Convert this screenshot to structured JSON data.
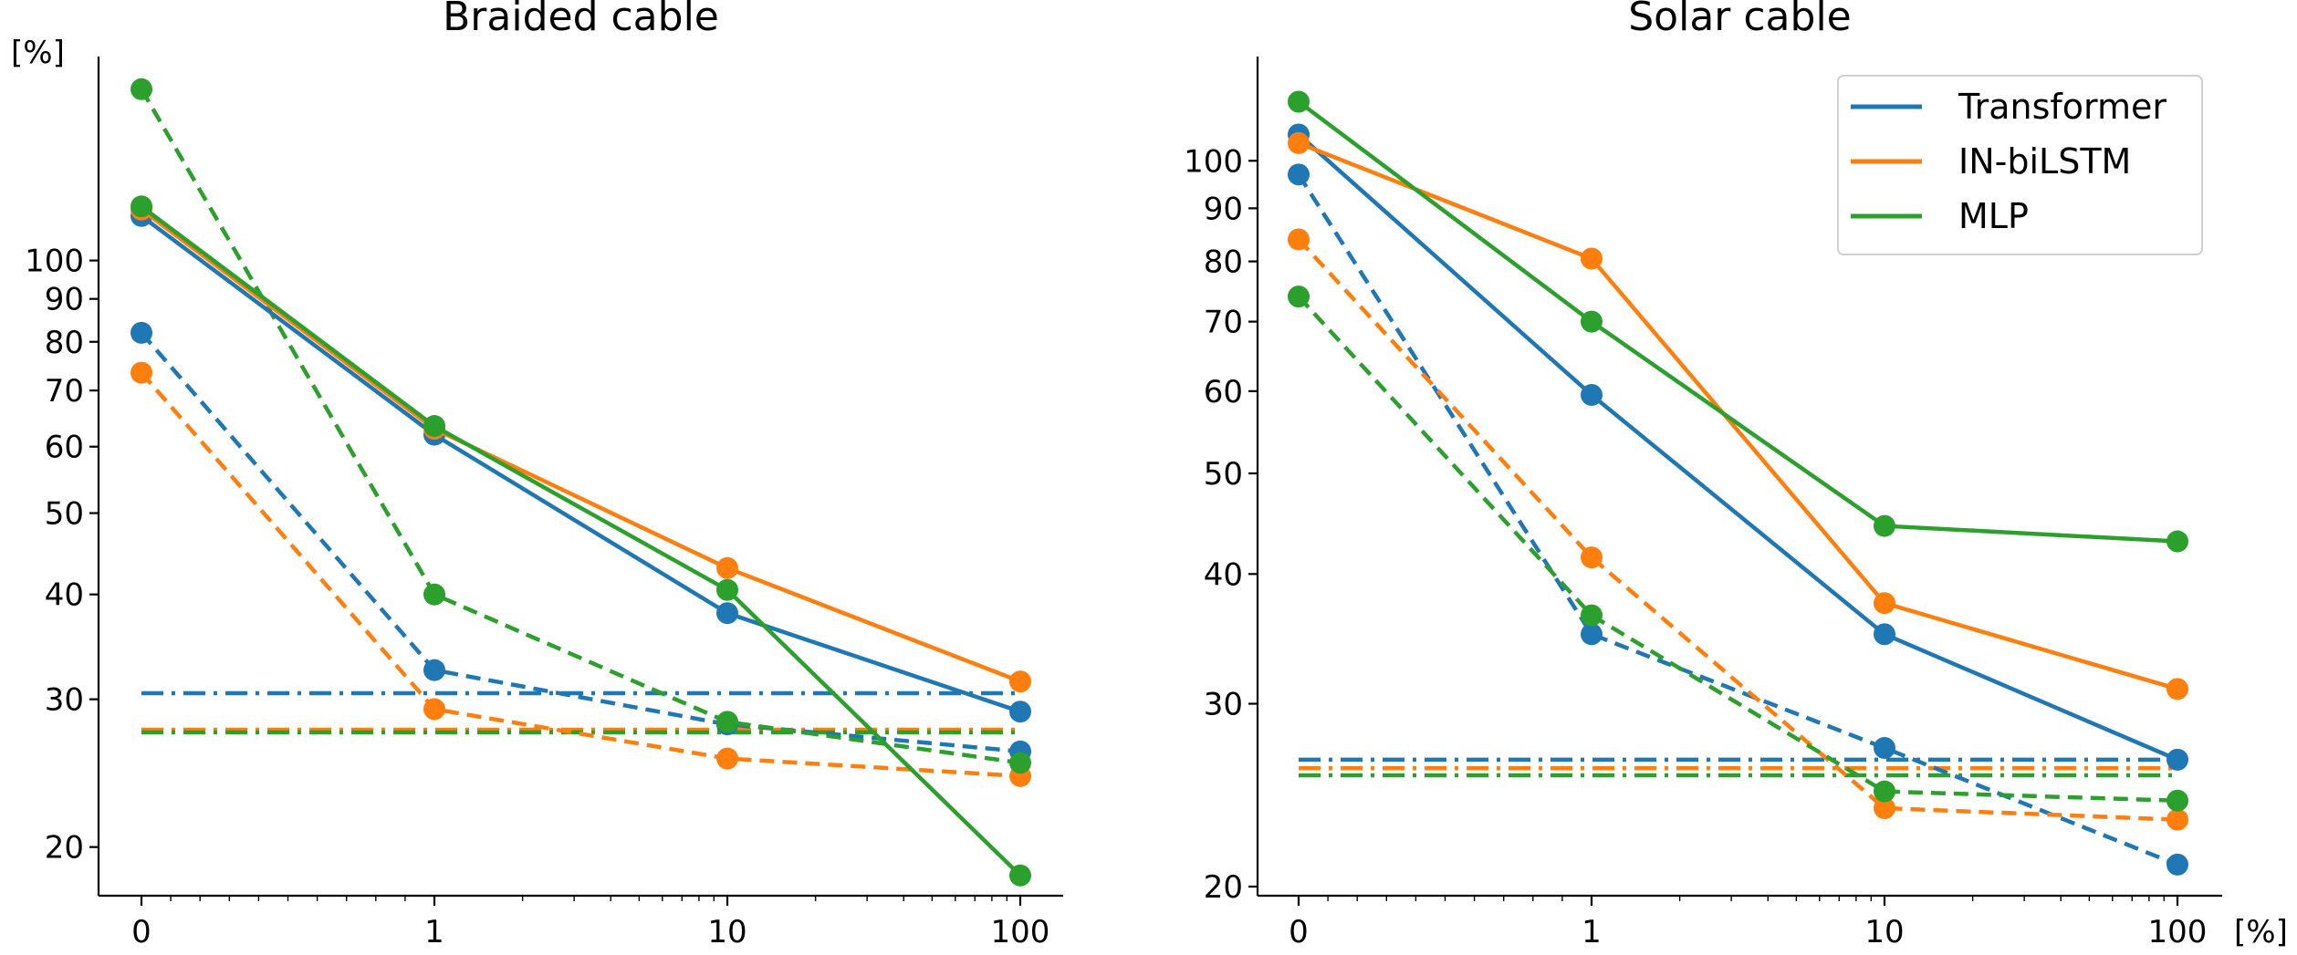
{
  "colors": {
    "Transformer": "#1f77b4",
    "IN-biLSTM": "#ff7f0e",
    "MLP": "#2ca02c"
  },
  "legend": [
    "Transformer",
    "IN-biLSTM",
    "MLP"
  ],
  "chart_data": [
    {
      "type": "line",
      "title": "Braided cable",
      "xscale": "symlog",
      "yscale": "log",
      "x": [
        0,
        1,
        10,
        100
      ],
      "xticks": [
        "0",
        "1",
        "10",
        "100"
      ],
      "xlabel": "",
      "ylabel": "[%]",
      "yticks": [
        20,
        30,
        40,
        50,
        60,
        70,
        80,
        90,
        100
      ],
      "ylim": [
        17.5,
        175
      ],
      "grid": false,
      "series": [
        {
          "name": "Transformer",
          "style": "solid",
          "values": [
            113,
            62,
            38,
            29
          ]
        },
        {
          "name": "IN-biLSTM",
          "style": "solid",
          "values": [
            115,
            63,
            43,
            31.5
          ]
        },
        {
          "name": "MLP",
          "style": "solid",
          "values": [
            116,
            63.5,
            40.5,
            18.5
          ]
        },
        {
          "name": "Transformer",
          "style": "dashed",
          "values": [
            82,
            32.5,
            28,
            26
          ]
        },
        {
          "name": "IN-biLSTM",
          "style": "dashed",
          "values": [
            73.5,
            29.2,
            25.5,
            24.3
          ]
        },
        {
          "name": "MLP",
          "style": "dashed",
          "values": [
            160,
            40,
            28.2,
            25.2
          ]
        },
        {
          "name": "Transformer",
          "style": "dashdot",
          "values": [
            30.5,
            30.5,
            30.5,
            30.5
          ]
        },
        {
          "name": "IN-biLSTM",
          "style": "dashdot",
          "values": [
            27.6,
            27.6,
            27.6,
            27.6
          ]
        },
        {
          "name": "MLP",
          "style": "dashdot",
          "values": [
            27.4,
            27.4,
            27.4,
            27.4
          ]
        }
      ]
    },
    {
      "type": "line",
      "title": "Solar cable",
      "xscale": "symlog",
      "yscale": "log",
      "x": [
        0,
        1,
        10,
        100
      ],
      "xticks": [
        "0",
        "1",
        "10",
        "100"
      ],
      "xlabel": "[%]",
      "ylabel": "",
      "yticks": [
        20,
        30,
        40,
        50,
        60,
        70,
        80,
        90,
        100
      ],
      "ylim": [
        19.6,
        126
      ],
      "grid": false,
      "legend_position": "top-right",
      "series": [
        {
          "name": "Transformer",
          "style": "solid",
          "values": [
            106,
            59.5,
            35,
            26.5
          ]
        },
        {
          "name": "IN-biLSTM",
          "style": "solid",
          "values": [
            104,
            80.5,
            37.5,
            31
          ]
        },
        {
          "name": "MLP",
          "style": "solid",
          "values": [
            114,
            70,
            44.5,
            43
          ]
        },
        {
          "name": "Transformer",
          "style": "dashed",
          "values": [
            97,
            35,
            27.2,
            21
          ]
        },
        {
          "name": "IN-biLSTM",
          "style": "dashed",
          "values": [
            84,
            41.5,
            23.8,
            23.2
          ]
        },
        {
          "name": "MLP",
          "style": "dashed",
          "values": [
            74,
            36.5,
            24.7,
            24.2
          ]
        },
        {
          "name": "Transformer",
          "style": "dashdot",
          "values": [
            26.5,
            26.5,
            26.5,
            26.5
          ]
        },
        {
          "name": "IN-biLSTM",
          "style": "dashdot",
          "values": [
            26,
            26,
            26,
            26
          ]
        },
        {
          "name": "MLP",
          "style": "dashdot",
          "values": [
            25.6,
            25.6,
            25.6,
            25.6
          ]
        }
      ]
    }
  ]
}
